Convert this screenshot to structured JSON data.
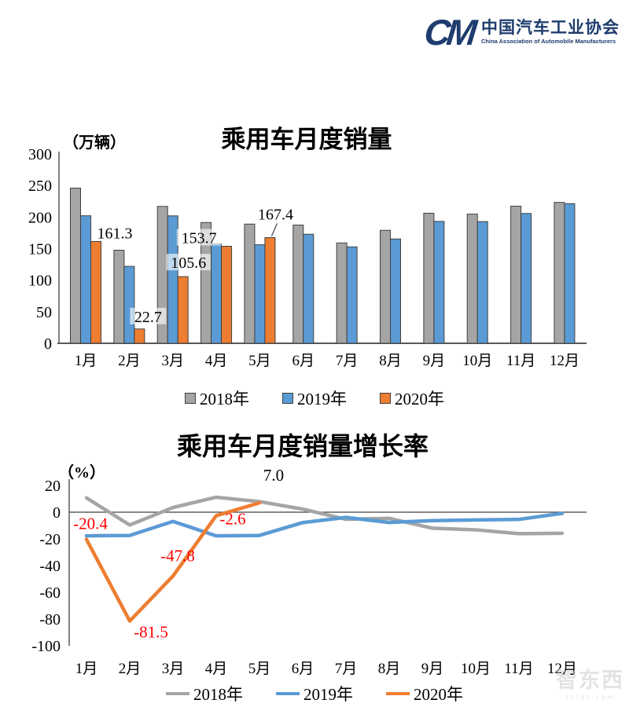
{
  "header": {
    "logo_monogram": "CM",
    "org_name_cn": "中国汽车工业协会",
    "org_name_en": "China Association of Automobile Manufacturers",
    "logo_color": "#1e3c6e"
  },
  "watermark": {
    "text": "智东西",
    "subtext": "zhidx.com"
  },
  "colors": {
    "axis": "#595959",
    "bar_outline": "#404040",
    "zero_line": "#404040",
    "label_red": "#ff0000"
  },
  "chart_data": [
    {
      "type": "bar",
      "title": "乘用车月度销量",
      "unit_label": "（万辆）",
      "categories": [
        "1月",
        "2月",
        "3月",
        "4月",
        "5月",
        "6月",
        "7月",
        "8月",
        "9月",
        "10月",
        "11月",
        "12月"
      ],
      "ylim": [
        0,
        300
      ],
      "yticks": [
        300,
        250,
        200,
        150,
        100,
        50,
        0
      ],
      "grid": false,
      "legend_position": "bottom",
      "series": [
        {
          "name": "2018年",
          "color": "#a5a5a5",
          "values": [
            245.9,
            147.5,
            216.9,
            191.4,
            188.9,
            187.4,
            159.0,
            179.0,
            206.1,
            204.7,
            217.3,
            223.3
          ]
        },
        {
          "name": "2019年",
          "color": "#5b9bd5",
          "values": [
            202.1,
            121.9,
            201.9,
            157.5,
            156.1,
            172.8,
            152.8,
            165.3,
            193.1,
            192.8,
            205.7,
            221.3
          ]
        },
        {
          "name": "2020年",
          "color": "#ed7d31",
          "values": [
            161.3,
            22.7,
            105.6,
            153.7,
            167.4,
            null,
            null,
            null,
            null,
            null,
            null,
            null
          ],
          "point_labels": [
            {
              "text": "161.3",
              "color": "#000000",
              "dx": 24,
              "dy": -11
            },
            {
              "text": "22.7",
              "color": "#000000",
              "dx": 11,
              "dy": -16
            },
            {
              "text": "105.6",
              "color": "#000000",
              "dx": 7,
              "dy": -18
            },
            {
              "text": "153.7",
              "color": "#000000",
              "dx": -35,
              "dy": -11
            },
            {
              "text": "167.4",
              "color": "#000000",
              "dx": 7,
              "dy": -30,
              "leader": true
            }
          ]
        }
      ]
    },
    {
      "type": "line",
      "title": "乘用车月度销量增长率",
      "unit_label": "（%）",
      "categories": [
        "1月",
        "2月",
        "3月",
        "4月",
        "5月",
        "6月",
        "7月",
        "8月",
        "9月",
        "10月",
        "11月",
        "12月"
      ],
      "ylim": [
        -100,
        20
      ],
      "yticks": [
        20,
        0,
        -20,
        -40,
        -60,
        -80,
        -100
      ],
      "grid": false,
      "legend_position": "bottom",
      "series": [
        {
          "name": "2018年",
          "color": "#a5a5a5",
          "values": [
            10.7,
            -9.6,
            3.5,
            11.2,
            7.9,
            2.3,
            -5.3,
            -4.6,
            -12.0,
            -13.2,
            -16.1,
            -15.8
          ]
        },
        {
          "name": "2019年",
          "color": "#5b9bd5",
          "values": [
            -17.7,
            -17.4,
            -6.9,
            -17.7,
            -17.4,
            -7.8,
            -3.9,
            -7.7,
            -6.3,
            -5.8,
            -5.4,
            -0.9
          ]
        },
        {
          "name": "2020年",
          "color": "#ed7d31",
          "values": [
            -20.4,
            -81.5,
            -47.8,
            -2.6,
            7.0,
            null,
            null,
            null,
            null,
            null,
            null,
            null
          ],
          "point_labels": [
            {
              "text": "-20.4",
              "color": "#ff0000",
              "dx": 5,
              "dy": -20
            },
            {
              "text": "-81.5",
              "color": "#ff0000",
              "dx": 27,
              "dy": 14
            },
            {
              "text": "-47.8",
              "color": "#ff0000",
              "dx": 6,
              "dy": -26
            },
            {
              "text": "-2.6",
              "color": "#ff0000",
              "dx": 21,
              "dy": 4
            },
            {
              "text": "7.0",
              "color": "#000000",
              "dx": 18,
              "dy": -35
            }
          ]
        }
      ]
    }
  ]
}
